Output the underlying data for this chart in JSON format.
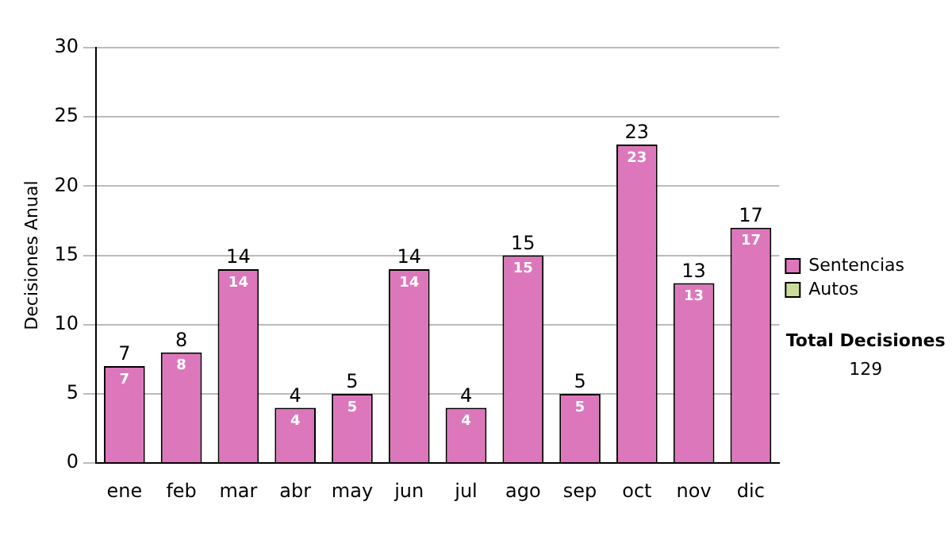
{
  "chart_data": {
    "type": "bar",
    "stacked": true,
    "ylabel": "Decisiones Anual",
    "categories": [
      "ene",
      "feb",
      "mar",
      "abr",
      "may",
      "jun",
      "jul",
      "ago",
      "sep",
      "oct",
      "nov",
      "dic"
    ],
    "series": [
      {
        "name": "Sentencias",
        "color": "#dd77bb",
        "values": [
          7,
          8,
          14,
          4,
          5,
          14,
          4,
          15,
          5,
          23,
          13,
          17
        ],
        "value_labels": [
          "7",
          "8",
          "14",
          "4",
          "5",
          "14",
          "4",
          "15",
          "5",
          "23",
          "13",
          "17"
        ]
      },
      {
        "name": "Autos",
        "color": "#ccdd99",
        "values": [
          0,
          0,
          0,
          0,
          0,
          0,
          0,
          0,
          0,
          0,
          0,
          0
        ]
      }
    ],
    "totals": [
      "7",
      "8",
      "14",
      "4",
      "5",
      "14",
      "4",
      "15",
      "5",
      "23",
      "13",
      "17"
    ],
    "ylim": [
      0,
      30
    ],
    "yticks": [
      0,
      5,
      10,
      15,
      20,
      25,
      30
    ],
    "grid": "y",
    "legend": "right",
    "annotations": [
      "Total Decisiones",
      "129"
    ]
  }
}
